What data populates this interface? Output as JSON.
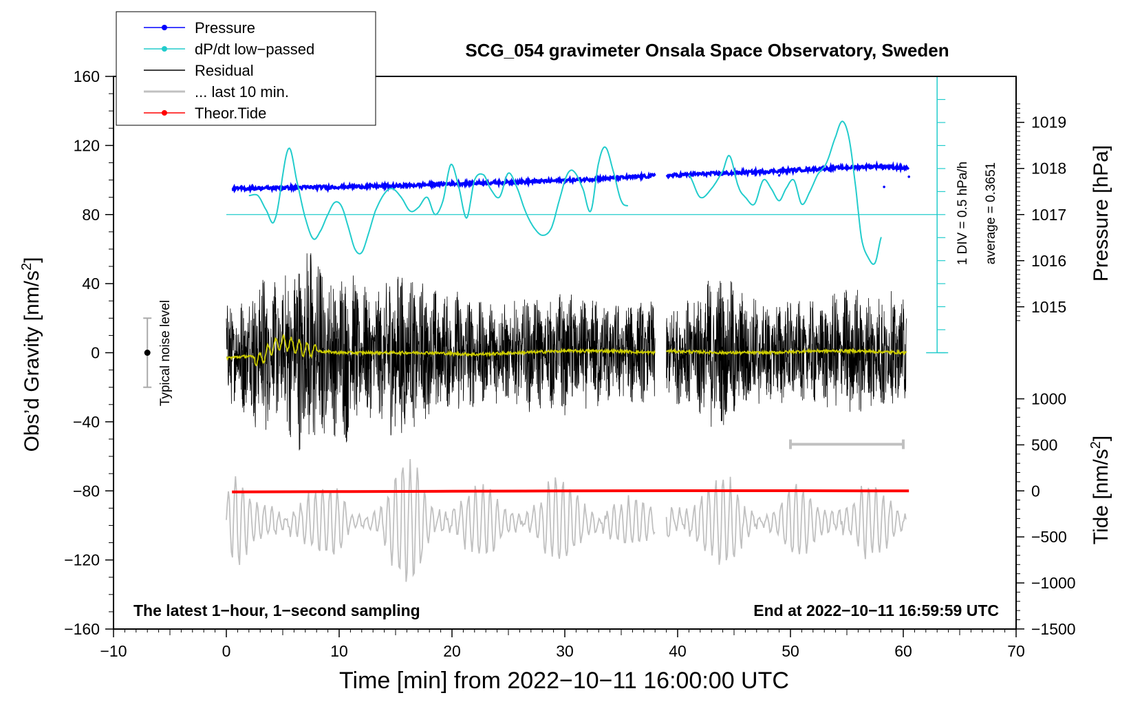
{
  "chart_data": {
    "type": "line",
    "title": "SCG_054 gravimeter Onsala Space Observatory, Sweden",
    "xlabel": "Time [min] from 2022−10−11 16:00:00 UTC",
    "ylabel_left": "Obs’d Gravity [nm/s",
    "ylabel_left_sup": "2",
    "ylabel_left_tail": "]",
    "ylabel_pressure": "Pressure [hPa]",
    "ylabel_tide": "Tide [nm/s",
    "ylabel_tide_sup": "2",
    "ylabel_tide_tail": "]",
    "xlim": [
      -10,
      70
    ],
    "ylim_left": [
      -160,
      160
    ],
    "x_ticks": [
      {
        "v": -10,
        "label": "−10"
      },
      {
        "v": 0,
        "label": "0"
      },
      {
        "v": 10,
        "label": "10"
      },
      {
        "v": 20,
        "label": "20"
      },
      {
        "v": 30,
        "label": "30"
      },
      {
        "v": 40,
        "label": "40"
      },
      {
        "v": 50,
        "label": "50"
      },
      {
        "v": 60,
        "label": "60"
      },
      {
        "v": 70,
        "label": "70"
      }
    ],
    "y_ticks_left": [
      {
        "v": 160,
        "label": "160"
      },
      {
        "v": 120,
        "label": "120"
      },
      {
        "v": 80,
        "label": "80"
      },
      {
        "v": 40,
        "label": "40"
      },
      {
        "v": 0,
        "label": "0"
      },
      {
        "v": -40,
        "label": "−40"
      },
      {
        "v": -80,
        "label": "−80"
      },
      {
        "v": -120,
        "label": "−120"
      },
      {
        "v": -160,
        "label": "−160"
      }
    ],
    "y_ticks_pressure": [
      {
        "v": 1019,
        "label": "1019"
      },
      {
        "v": 1018,
        "label": "1018"
      },
      {
        "v": 1017,
        "label": "1017"
      },
      {
        "v": 1016,
        "label": "1016"
      },
      {
        "v": 1015,
        "label": "1015"
      }
    ],
    "y_ticks_tide": [
      {
        "v": 1000,
        "label": "1000"
      },
      {
        "v": 500,
        "label": "500"
      },
      {
        "v": 0,
        "label": "0"
      },
      {
        "v": -500,
        "label": "−500"
      },
      {
        "v": -1000,
        "label": "−1000"
      },
      {
        "v": -1500,
        "label": "−1500"
      }
    ],
    "pressure_axis_map": {
      "ref_hpa": 1017,
      "ref_left": 80,
      "left_per_hpa": 26.7
    },
    "tide_axis_map": {
      "ref_tide": 0,
      "ref_left": -80,
      "left_per_unit": 0.0533
    },
    "legend": [
      {
        "label": "Pressure",
        "color": "#0000ff",
        "marker": true
      },
      {
        "label": "dP/dt low−passed",
        "color": "#22cccc",
        "marker": true
      },
      {
        "label": "Residual",
        "color": "#000000",
        "marker": false
      },
      {
        "label": "... last 10 min.",
        "color": "#c0c0c0",
        "marker": false
      },
      {
        "label": "Theor.Tide",
        "color": "#ff0000",
        "marker": true
      }
    ],
    "legend_position": "top-left",
    "annotations": {
      "noise_label": "Typical noise level",
      "noise_range": [
        -20,
        20
      ],
      "noise_x": -7,
      "div_label": "1 DIV = 0.5 hPa/h",
      "average_label": "average = 0.3651",
      "dpdt_axis_x": 63,
      "dpdt_axis_range": [
        0,
        160
      ],
      "dpdt_baseline": 80,
      "last10_bar": {
        "x0": 50,
        "x1": 60,
        "y": -53
      },
      "bottom_left": "The latest 1−hour, 1−second sampling",
      "bottom_right": "End at 2022−10−11 16:59:59 UTC"
    },
    "series": [
      {
        "name": "Pressure",
        "color": "#0000ff",
        "units": "hPa",
        "segments": [
          {
            "x": [
              0.5,
              5,
              10,
              15,
              20,
              25,
              30,
              35,
              38
            ],
            "y": [
              1017.56,
              1017.58,
              1017.6,
              1017.62,
              1017.67,
              1017.7,
              1017.74,
              1017.8,
              1017.84
            ]
          },
          {
            "x": [
              39,
              42,
              45,
              50,
              55,
              58,
              60.5
            ],
            "y": [
              1017.84,
              1017.88,
              1017.9,
              1017.96,
              1018.02,
              1018.05,
              1018.0
            ]
          }
        ]
      },
      {
        "name": "dP/dt low−passed",
        "color": "#22cccc",
        "units": "nm/s2 scale",
        "segments": [
          {
            "x": [
              2,
              2.8,
              3.5,
              4.3,
              5.5,
              6.3,
              7,
              7.7,
              8.3,
              9,
              9.6,
              10.2,
              10.8,
              11.4,
              12,
              12.6,
              13.2,
              14,
              14.7,
              15.5,
              16.3,
              17,
              17.8,
              18.5,
              19.2,
              19.9,
              20.6,
              21.3,
              22,
              22.8,
              23.4,
              24.2,
              25,
              25.8,
              26.5,
              27.2,
              28,
              28.8,
              29.5,
              30.2,
              30.8,
              31.6,
              32.3,
              33,
              33.6,
              34.3,
              35,
              35.6
            ],
            "y": [
              91,
              91,
              83,
              77,
              118,
              98,
              78,
              66,
              70,
              80,
              87,
              85,
              73,
              60,
              58,
              69,
              82,
              92,
              95,
              90,
              82,
              84,
              90,
              80,
              88,
              109,
              96,
              78,
              100,
              103,
              95,
              90,
              104,
              95,
              82,
              73,
              68,
              72,
              88,
              103,
              105,
              95,
              82,
              110,
              119,
              105,
              88,
              85
            ]
          },
          {
            "x": [
              41,
              42,
              43,
              44,
              44.6,
              45.4,
              46,
              46.8,
              47.6,
              48.3,
              49,
              49.6,
              50.3,
              51,
              51.7,
              52.4,
              53.2,
              54,
              54.6,
              55.2,
              55.8,
              56.3,
              56.9,
              57.5,
              58.1
            ],
            "y": [
              103,
              90,
              95,
              105,
              114,
              96,
              90,
              86,
              100,
              95,
              88,
              95,
              100,
              86,
              93,
              103,
              110,
              125,
              134,
              124,
              95,
              66,
              55,
              52,
              68
            ]
          }
        ]
      },
      {
        "name": "Residual",
        "color": "#000000",
        "units": "nm/s2",
        "segments": [
          {
            "x": [
              0,
              1.5,
              3,
              4.5,
              6,
              7.5,
              9,
              10.5,
              12,
              13.5,
              15,
              16.5,
              18,
              19.5,
              21,
              22.5,
              24,
              25.5,
              27,
              28.5,
              30,
              31.5,
              33,
              34.5,
              36,
              38
            ],
            "amp": [
              30,
              35,
              50,
              40,
              55,
              70,
              45,
              55,
              40,
              38,
              55,
              45,
              42,
              35,
              38,
              30,
              32,
              30,
              35,
              32,
              38,
              32,
              35,
              30,
              32,
              30
            ]
          },
          {
            "x": [
              39,
              40.5,
              42,
              43.5,
              45,
              46.5,
              48,
              49.5,
              51,
              52.5,
              54,
              55.5,
              57,
              58.5,
              60.3
            ],
            "amp": [
              30,
              32,
              40,
              48,
              42,
              35,
              30,
              34,
              30,
              32,
              36,
              40,
              35,
              38,
              30
            ]
          }
        ]
      },
      {
        "name": "Residual smoothed",
        "color": "#cccc00",
        "units": "nm/s2",
        "segments": [
          {
            "x": [
              0,
              2,
              3,
              4,
              5,
              6,
              7,
              8,
              10,
              14,
              18,
              22,
              26,
              30,
              34,
              38
            ],
            "y": [
              -3,
              -2,
              -4,
              3,
              6,
              4,
              2,
              1,
              0,
              0,
              0,
              -1,
              0,
              1,
              1,
              0
            ]
          },
          {
            "x": [
              39,
              44,
              48,
              52,
              56,
              60.3
            ],
            "y": [
              1,
              0,
              0,
              1,
              1,
              0
            ]
          }
        ]
      },
      {
        "name": "... last 10 min.",
        "color": "#c0c0c0",
        "units": "nm/s2",
        "baseline": -98,
        "segments": [
          {
            "x": [
              0,
              1,
              2,
              3,
              4,
              5,
              6,
              7,
              8,
              9,
              10,
              11,
              12,
              13,
              14,
              15,
              16,
              17,
              18,
              19,
              20,
              21,
              22,
              23,
              24,
              25,
              26,
              27,
              28,
              29,
              30,
              31,
              32,
              33,
              34,
              35,
              36,
              37,
              38
            ],
            "amp": [
              25,
              28,
              15,
              12,
              18,
              20,
              25,
              22,
              18,
              20,
              22,
              15,
              12,
              15,
              20,
              30,
              35,
              38,
              30,
              22,
              18,
              20,
              22,
              20,
              18,
              15,
              18,
              22,
              25,
              25,
              22,
              20,
              18,
              20,
              22,
              18,
              15,
              12,
              10
            ]
          },
          {
            "x": [
              39,
              40,
              41,
              42,
              43,
              44,
              45,
              46,
              47,
              48,
              49,
              50,
              51,
              52,
              53,
              54,
              55,
              56,
              57,
              58,
              59,
              60.3
            ],
            "amp": [
              25,
              30,
              22,
              20,
              22,
              25,
              28,
              22,
              15,
              12,
              15,
              20,
              22,
              18,
              15,
              20,
              22,
              25,
              22,
              18,
              15,
              10
            ]
          }
        ]
      },
      {
        "name": "Theor.Tide",
        "color": "#ff0000",
        "units": "nm/s2 tide",
        "x": [
          0.5,
          10,
          20,
          30,
          40,
          50,
          60.5
        ],
        "y": [
          -80.6,
          -80.4,
          -80.2,
          -80.0,
          -79.9,
          -79.9,
          -80.0
        ]
      }
    ]
  }
}
